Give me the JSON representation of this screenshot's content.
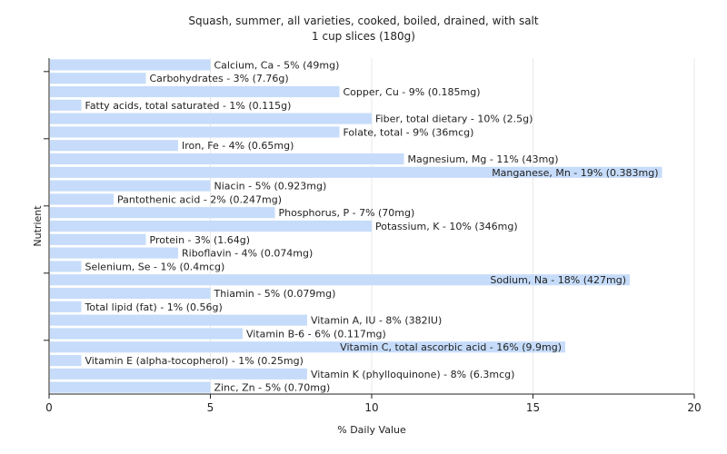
{
  "chart_data": {
    "type": "bar",
    "orientation": "horizontal",
    "title": "Squash, summer, all varieties, cooked, boiled, drained, with salt",
    "subtitle": "1 cup slices (180g)",
    "xlabel": "% Daily Value",
    "ylabel": "Nutrient",
    "xlim": [
      0,
      20
    ],
    "xticks": [
      0,
      5,
      10,
      15,
      20
    ],
    "grid": true,
    "categories": [
      "Calcium, Ca",
      "Carbohydrates",
      "Copper, Cu",
      "Fatty acids, total saturated",
      "Fiber, total dietary",
      "Folate, total",
      "Iron, Fe",
      "Magnesium, Mg",
      "Manganese, Mn",
      "Niacin",
      "Pantothenic acid",
      "Phosphorus, P",
      "Potassium, K",
      "Protein",
      "Riboflavin",
      "Selenium, Se",
      "Sodium, Na",
      "Thiamin",
      "Total lipid (fat)",
      "Vitamin A, IU",
      "Vitamin B-6",
      "Vitamin C, total ascorbic acid",
      "Vitamin E (alpha-tocopherol)",
      "Vitamin K (phylloquinone)",
      "Zinc, Zn"
    ],
    "values": [
      5,
      3,
      9,
      1,
      10,
      9,
      4,
      11,
      19,
      5,
      2,
      7,
      10,
      3,
      4,
      1,
      18,
      5,
      1,
      8,
      6,
      16,
      1,
      8,
      5
    ],
    "labels": [
      "Calcium, Ca - 5% (49mg)",
      "Carbohydrates - 3% (7.76g)",
      "Copper, Cu - 9% (0.185mg)",
      "Fatty acids, total saturated - 1% (0.115g)",
      "Fiber, total dietary - 10% (2.5g)",
      "Folate, total - 9% (36mcg)",
      "Iron, Fe - 4% (0.65mg)",
      "Magnesium, Mg - 11% (43mg)",
      "Manganese, Mn - 19% (0.383mg)",
      "Niacin - 5% (0.923mg)",
      "Pantothenic acid - 2% (0.247mg)",
      "Phosphorus, P - 7% (70mg)",
      "Potassium, K - 10% (346mg)",
      "Protein - 3% (1.64g)",
      "Riboflavin - 4% (0.074mg)",
      "Selenium, Se - 1% (0.4mcg)",
      "Sodium, Na - 18% (427mg)",
      "Thiamin - 5% (0.079mg)",
      "Total lipid (fat) - 1% (0.56g)",
      "Vitamin A, IU - 8% (382IU)",
      "Vitamin B-6 - 6% (0.117mg)",
      "Vitamin C, total ascorbic acid - 16% (9.9mg)",
      "Vitamin E (alpha-tocopherol) - 1% (0.25mg)",
      "Vitamin K (phylloquinone) - 8% (6.3mcg)",
      "Zinc, Zn - 5% (0.70mg)"
    ],
    "colors": {
      "bar": "#c6dcfa"
    }
  }
}
